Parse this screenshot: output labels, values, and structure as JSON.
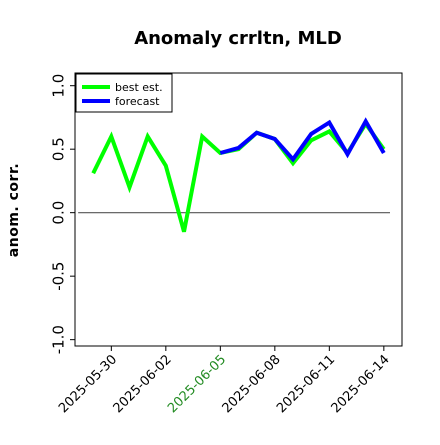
{
  "chart_data": {
    "type": "line",
    "title": "Anomaly crrltn, MLD",
    "xlabel": "",
    "ylabel": "anom. corr.",
    "x_dates": [
      "2025-05-29",
      "2025-05-30",
      "2025-05-31",
      "2025-06-01",
      "2025-06-02",
      "2025-06-03",
      "2025-06-04",
      "2025-06-05",
      "2025-06-06",
      "2025-06-07",
      "2025-06-08",
      "2025-06-09",
      "2025-06-10",
      "2025-06-11",
      "2025-06-12",
      "2025-06-13",
      "2025-06-14"
    ],
    "xlim": [
      "2025-05-28",
      "2025-06-15"
    ],
    "ylim": [
      -1.05,
      1.1
    ],
    "xticks": [
      {
        "label": "2025-05-30",
        "date": "2025-05-30",
        "color": "#000000"
      },
      {
        "label": "2025-06-02",
        "date": "2025-06-02",
        "color": "#000000"
      },
      {
        "label": "2025-06-05",
        "date": "2025-06-05",
        "color": "#228B22"
      },
      {
        "label": "2025-06-08",
        "date": "2025-06-08",
        "color": "#000000"
      },
      {
        "label": "2025-06-11",
        "date": "2025-06-11",
        "color": "#000000"
      },
      {
        "label": "2025-06-14",
        "date": "2025-06-14",
        "color": "#000000"
      }
    ],
    "yticks": [
      -1.0,
      -0.5,
      0.0,
      0.5,
      1.0
    ],
    "ytick_labels": [
      "-1.0",
      "-0.5",
      "0.0",
      "0.5",
      "1.0"
    ],
    "reference_line": {
      "y": 0.0,
      "color": "#555555"
    },
    "series": [
      {
        "name": "best est.",
        "color": "#00ff00",
        "values": [
          0.31,
          0.6,
          0.2,
          0.6,
          0.37,
          -0.15,
          0.6,
          0.47,
          0.5,
          0.63,
          0.58,
          0.39,
          0.57,
          0.64,
          0.47,
          0.7,
          0.5
        ]
      },
      {
        "name": "forecast",
        "color": "#0000ff",
        "start_index": 7,
        "values": [
          null,
          null,
          null,
          null,
          null,
          null,
          null,
          0.47,
          0.51,
          0.63,
          0.58,
          0.42,
          0.62,
          0.71,
          0.46,
          0.72,
          0.47
        ]
      }
    ],
    "legend": {
      "placement": "top-left"
    },
    "grid": false
  }
}
